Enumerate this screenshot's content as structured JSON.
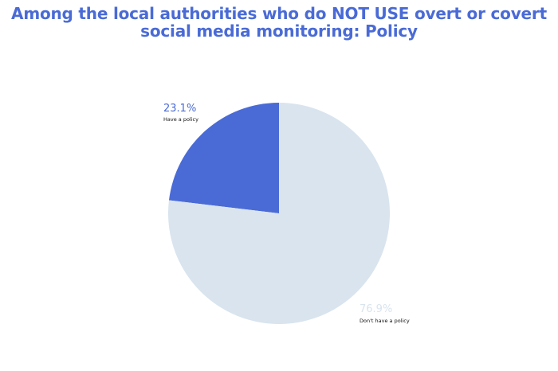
{
  "chart_data": {
    "type": "pie",
    "title_lines": [
      "Among the local authorities who do NOT USE overt or covert",
      "social media monitoring: Policy"
    ],
    "slices": [
      {
        "label": "Have a policy",
        "value": 23.1,
        "value_label": "23.1%",
        "color": "#4a6bd6"
      },
      {
        "label": "Don't have a policy",
        "value": 76.9,
        "value_label": "76.9%",
        "color": "#d9e4ee"
      }
    ]
  }
}
